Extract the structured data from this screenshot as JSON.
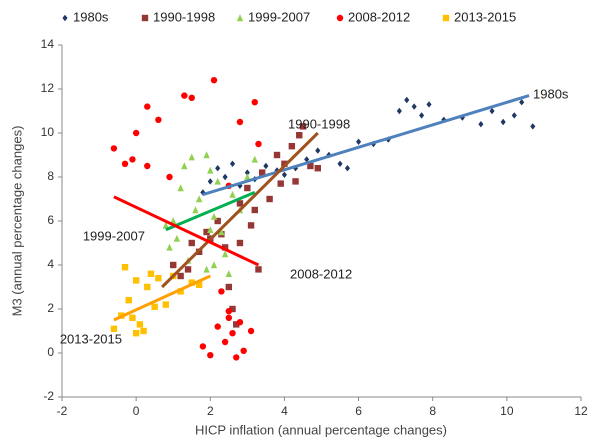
{
  "chart_data": {
    "type": "scatter",
    "xlabel": "HICP inflation (annual percentage changes)",
    "ylabel": "M3 (annual percentage changes)",
    "xlim": [
      -2,
      12
    ],
    "xticks": [
      -2,
      0,
      2,
      4,
      6,
      8,
      10,
      12
    ],
    "ylim": [
      -2,
      14
    ],
    "yticks": [
      -2,
      0,
      2,
      4,
      6,
      8,
      10,
      12,
      14
    ],
    "grid": false,
    "series": [
      {
        "name": "1980s",
        "color": "#1f3864",
        "marker": "diamond",
        "trend_color": "#4f81bd",
        "x": [
          1.8,
          2.0,
          2.2,
          2.4,
          2.6,
          2.8,
          3.0,
          3.2,
          3.5,
          3.8,
          4.0,
          4.3,
          4.6,
          4.9,
          5.2,
          5.5,
          5.7,
          6.0,
          6.4,
          6.8,
          7.1,
          7.3,
          7.5,
          7.7,
          7.9,
          8.3,
          8.8,
          9.3,
          9.6,
          9.9,
          10.2,
          10.4,
          10.7
        ],
        "y": [
          7.3,
          7.8,
          8.4,
          8.0,
          8.6,
          7.6,
          8.2,
          7.9,
          8.5,
          8.3,
          8.1,
          8.4,
          8.8,
          9.2,
          9.0,
          8.6,
          8.4,
          9.6,
          9.5,
          9.7,
          11.0,
          11.5,
          11.2,
          10.8,
          11.3,
          10.6,
          10.7,
          10.4,
          11.0,
          10.5,
          10.8,
          11.4,
          10.3
        ],
        "trend": {
          "x": [
            1.8,
            10.6
          ],
          "y": [
            7.2,
            11.7
          ]
        }
      },
      {
        "name": "1990-1998",
        "color": "#953735",
        "marker": "square",
        "trend_color": "#a0521e",
        "x": [
          1.0,
          1.2,
          1.5,
          1.7,
          1.9,
          2.2,
          2.4,
          2.5,
          2.6,
          2.7,
          2.8,
          3.0,
          3.2,
          3.4,
          3.6,
          3.8,
          4.0,
          4.2,
          4.3,
          4.5,
          4.7,
          4.9,
          2.3,
          3.1,
          3.9,
          2.0,
          1.4,
          2.8,
          3.3,
          4.4
        ],
        "y": [
          4.0,
          3.5,
          5.0,
          4.6,
          5.5,
          6.0,
          4.8,
          3.0,
          2.0,
          1.3,
          6.8,
          7.5,
          6.5,
          8.2,
          7.0,
          9.0,
          8.6,
          9.4,
          7.8,
          10.3,
          8.5,
          8.4,
          5.4,
          5.8,
          7.7,
          5.2,
          3.8,
          5.0,
          3.8,
          9.9
        ],
        "trend": {
          "x": [
            0.7,
            4.9
          ],
          "y": [
            3.0,
            10.0
          ]
        }
      },
      {
        "name": "1999-2007",
        "color": "#92d050",
        "marker": "triangle",
        "trend_color": "#00b050",
        "x": [
          0.8,
          1.0,
          1.2,
          1.3,
          1.5,
          1.7,
          1.9,
          2.0,
          2.1,
          2.2,
          2.3,
          2.4,
          2.1,
          1.9,
          0.9,
          1.1,
          2.6,
          2.8,
          3.0,
          3.2,
          1.6,
          2.5,
          1.4,
          2.0
        ],
        "y": [
          5.8,
          6.0,
          7.5,
          8.5,
          8.9,
          7.0,
          9.0,
          8.3,
          6.2,
          7.8,
          5.5,
          4.5,
          4.0,
          3.8,
          4.8,
          5.2,
          7.2,
          6.5,
          8.0,
          8.8,
          6.5,
          3.6,
          4.2,
          5.6
        ],
        "trend": {
          "x": [
            0.8,
            3.2
          ],
          "y": [
            5.6,
            7.3
          ]
        }
      },
      {
        "name": "2008-2012",
        "color": "#ff0000",
        "marker": "circle",
        "trend_color": "#ff0000",
        "x": [
          -0.6,
          -0.3,
          0.0,
          0.3,
          0.6,
          0.9,
          1.3,
          1.5,
          2.1,
          2.5,
          2.8,
          3.2,
          3.3,
          -0.1,
          1.8,
          2.0,
          2.5,
          2.6,
          2.7,
          2.8,
          2.3,
          2.5,
          2.4,
          3.1,
          2.9,
          2.2,
          0.3
        ],
        "y": [
          9.3,
          8.6,
          10.0,
          11.2,
          10.6,
          8.0,
          11.7,
          11.6,
          12.4,
          7.6,
          10.5,
          11.4,
          9.5,
          8.8,
          0.3,
          -0.1,
          1.6,
          0.9,
          -0.2,
          1.4,
          2.8,
          1.9,
          0.5,
          1.0,
          0.1,
          1.2,
          8.5
        ],
        "trend": {
          "x": [
            -0.6,
            3.3
          ],
          "y": [
            7.1,
            4.0
          ]
        }
      },
      {
        "name": "2013-2015",
        "color": "#ffc000",
        "marker": "square",
        "trend_color": "#ffa000",
        "x": [
          -0.6,
          -0.4,
          -0.2,
          -0.1,
          0.0,
          0.2,
          0.3,
          0.4,
          0.6,
          0.8,
          1.0,
          1.2,
          1.5,
          1.7,
          0.0,
          0.5,
          -0.3,
          0.1
        ],
        "y": [
          1.1,
          1.7,
          2.4,
          1.6,
          0.9,
          1.0,
          3.0,
          3.6,
          3.4,
          2.2,
          3.5,
          2.8,
          3.2,
          3.1,
          3.3,
          2.1,
          3.9,
          1.3
        ],
        "trend": {
          "x": [
            -0.6,
            2.0
          ],
          "y": [
            1.5,
            3.5
          ]
        }
      }
    ]
  }
}
